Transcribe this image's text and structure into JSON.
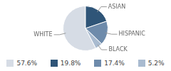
{
  "chart_data": {
    "type": "pie",
    "categories": [
      "WHITE",
      "ASIAN",
      "HISPANIC",
      "BLACK"
    ],
    "values": [
      57.6,
      19.8,
      17.4,
      5.2
    ],
    "value_labels": [
      "57.6%",
      "19.8%",
      "17.4%",
      "5.2%"
    ],
    "colors": [
      "#d6dce5",
      "#2f5578",
      "#6e8bab",
      "#a9bbd0"
    ],
    "legend": "bottom"
  }
}
